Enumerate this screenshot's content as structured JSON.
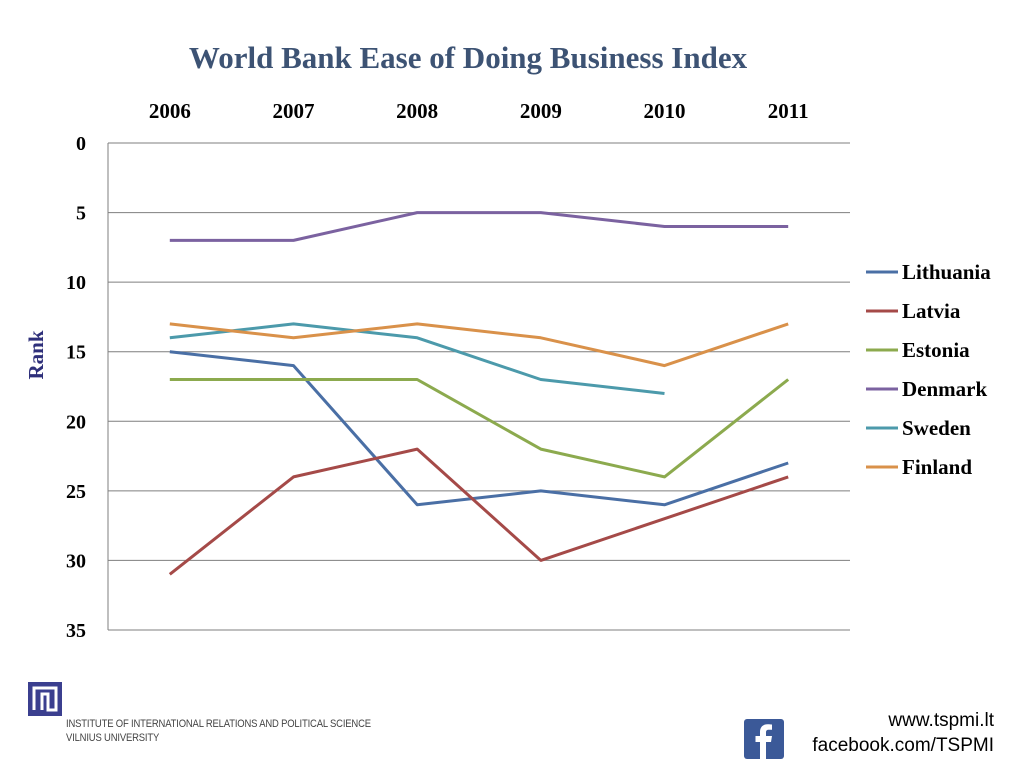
{
  "chart_data": {
    "type": "line",
    "title": "World Bank Ease of Doing Business Index",
    "ylabel": "Rank",
    "xlabel": "",
    "x": [
      "2006",
      "2007",
      "2008",
      "2009",
      "2010",
      "2011"
    ],
    "y_ticks": [
      "0",
      "5",
      "10",
      "15",
      "20",
      "25",
      "30",
      "35"
    ],
    "ylim": [
      0,
      35
    ],
    "y_inverted": true,
    "x_axis_position": "top",
    "grid": true,
    "legend_position": "right",
    "series": [
      {
        "name": "Lithuania",
        "color": "#4a6fa5",
        "values": [
          15,
          16,
          26,
          25,
          26,
          23
        ]
      },
      {
        "name": "Latvia",
        "color": "#a54a48",
        "values": [
          31,
          24,
          22,
          30,
          27,
          24
        ]
      },
      {
        "name": "Estonia",
        "color": "#8caa4e",
        "values": [
          17,
          17,
          17,
          22,
          24,
          17
        ]
      },
      {
        "name": "Denmark",
        "color": "#7b62a0",
        "values": [
          7,
          7,
          5,
          5,
          6,
          6
        ]
      },
      {
        "name": "Sweden",
        "color": "#4c9aab",
        "values": [
          14,
          13,
          14,
          17,
          18,
          null
        ]
      },
      {
        "name": "Finland",
        "color": "#d9914a",
        "values": [
          13,
          14,
          13,
          14,
          16,
          13
        ]
      }
    ]
  },
  "footer": {
    "institute_line1": "INSTITUTE OF INTERNATIONAL RELATIONS AND POLITICAL SCIENCE",
    "institute_line2": "VILNIUS UNIVERSITY",
    "website": "www.tspmi.lt",
    "facebook": "facebook.com/TSPMI",
    "logo_icon": "meander-logo-icon",
    "facebook_icon": "facebook-icon",
    "brand_color": "#3b3f8f"
  }
}
